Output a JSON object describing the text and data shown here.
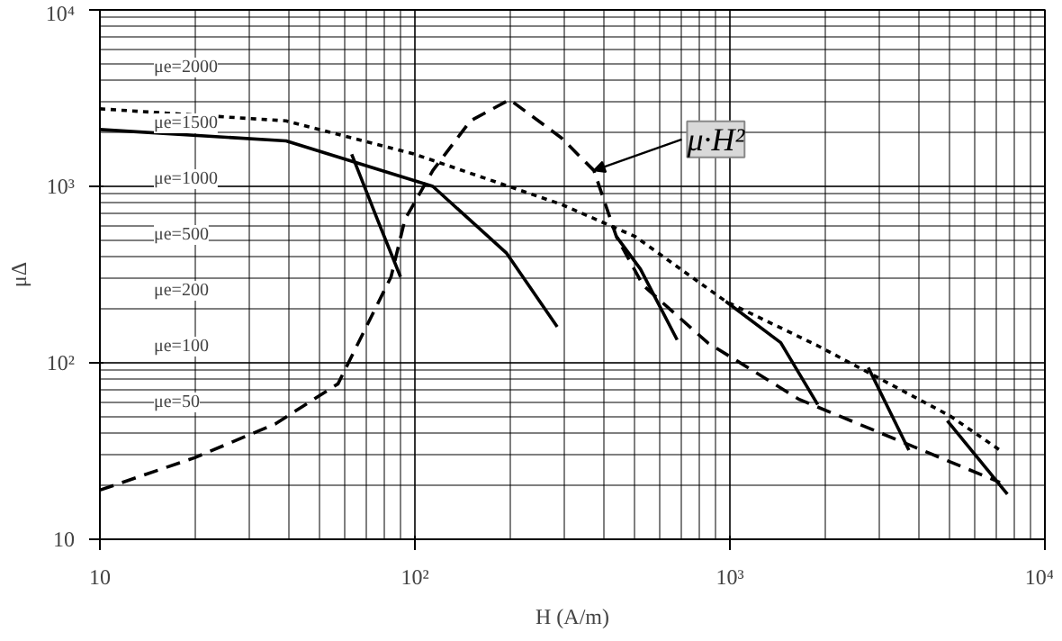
{
  "chart_data": {
    "type": "line",
    "xlabel": "H (A/m)",
    "ylabel": "μΔ",
    "log": "xy",
    "grid": true,
    "xlim": [
      10,
      10000
    ],
    "ylim": [
      10,
      10000
    ],
    "xticks": [
      10,
      {
        "value": 100,
        "label": "10²"
      },
      {
        "value": 1000,
        "label": "10³"
      },
      {
        "value": 10000,
        "label": "10⁴"
      }
    ],
    "yticks": [
      10,
      {
        "value": 100,
        "label": "10²"
      },
      {
        "value": 1000,
        "label": "10³"
      },
      {
        "value": 10000,
        "label": "10⁴"
      }
    ],
    "series": [
      {
        "color": "#000000",
        "line_style": "dotted",
        "x": [
          10,
          39,
          100,
          292,
          500,
          970,
          1900,
          5000,
          7200
        ],
        "values": [
          2750,
          2350,
          1520,
          790,
          520,
          223,
          125,
          50,
          32
        ]
      },
      {
        "color": "#000000",
        "line_style": "solid",
        "x": [
          10,
          39,
          114,
          195,
          283
        ],
        "values": [
          2100,
          1810,
          1000,
          420,
          160
        ]
      },
      {
        "color": "#000000",
        "line_style": "solid",
        "x": [
          63,
          76,
          90
        ],
        "values": [
          1520,
          650,
          307
        ]
      },
      {
        "color": "#000000",
        "line_style": "solid",
        "x": [
          436,
          520,
          680
        ],
        "values": [
          520,
          340,
          135
        ]
      },
      {
        "color": "#000000",
        "line_style": "solid",
        "x": [
          970,
          1450,
          1900
        ],
        "values": [
          223,
          130,
          58
        ]
      },
      {
        "color": "#000000",
        "line_style": "solid",
        "x": [
          2750,
          3700
        ],
        "values": [
          94,
          32
        ]
      },
      {
        "color": "#000000",
        "line_style": "solid",
        "x": [
          4900,
          7600
        ],
        "values": [
          47,
          18
        ]
      },
      {
        "color": "#000000",
        "line_style": "dashed",
        "x": [
          10,
          20,
          36,
          57,
          84,
          93,
          114,
          150,
          200,
          292,
          370,
          436,
          530,
          850,
          1660,
          4250,
          7200
        ],
        "values": [
          19,
          29,
          45,
          76,
          307,
          650,
          1230,
          2350,
          3100,
          1880,
          1230,
          520,
          275,
          130,
          62,
          31,
          21
        ]
      }
    ],
    "annotations": [
      {
        "text": "μ·H²",
        "x": 370,
        "y": 1230
      },
      "μe=2000",
      "μe=1500",
      "μe=1000",
      "μe=500",
      "μe=200",
      "μe=100",
      "μe=50"
    ]
  }
}
